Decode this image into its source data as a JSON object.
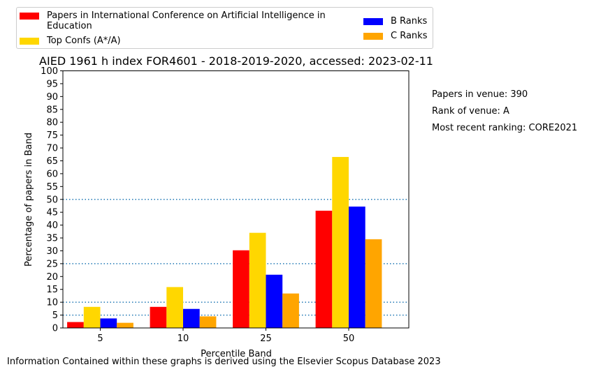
{
  "chart_data": {
    "type": "bar",
    "title": "AIED 1961 h index FOR4601 - 2018-2019-2020, accessed: 2023-02-11",
    "xlabel": "Percentile Band",
    "ylabel": "Percentage of papers in Band",
    "categories": [
      "5",
      "10",
      "25",
      "50"
    ],
    "ylim": [
      0,
      100
    ],
    "yticks": [
      "0",
      "5",
      "10",
      "15",
      "20",
      "25",
      "30",
      "35",
      "40",
      "45",
      "50",
      "55",
      "60",
      "65",
      "70",
      "75",
      "80",
      "85",
      "90",
      "95",
      "100"
    ],
    "reference_lines": [
      5,
      10,
      25,
      50
    ],
    "legend_position": "top",
    "series": [
      {
        "name": "Papers in International Conference on Artificial Intelligence in Education",
        "color": "#ff0000",
        "values": [
          2.3,
          8.2,
          30.2,
          45.6
        ]
      },
      {
        "name": "Top Confs (A*/A)",
        "color": "#ffd700",
        "values": [
          8.2,
          15.9,
          37.0,
          66.5
        ]
      },
      {
        "name": "B Ranks",
        "color": "#0000ff",
        "values": [
          3.7,
          7.4,
          20.7,
          47.2
        ]
      },
      {
        "name": "C Ranks",
        "color": "#ffa500",
        "values": [
          2.0,
          4.5,
          13.4,
          34.5
        ]
      }
    ]
  },
  "info": {
    "papers_in_venue": "Papers in venue: 390",
    "rank_of_venue": "Rank of venue: A",
    "most_recent_ranking": "Most recent ranking: CORE2021"
  },
  "footer": "Information Contained within these graphs is derived using the Elsevier Scopus Database 2023"
}
